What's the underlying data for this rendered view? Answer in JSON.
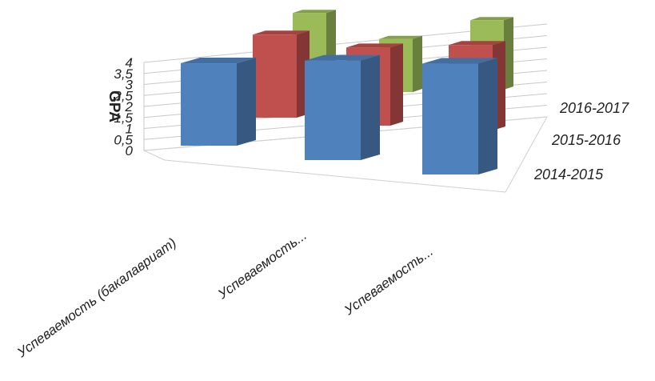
{
  "chart_data": {
    "type": "bar",
    "subtype": "3d-column",
    "categories": [
      "Успеваемость (бакалавриат)",
      "Успеваемость...",
      "Успеваемость..."
    ],
    "series": [
      {
        "name": "2014-2015",
        "values": [
          2.9,
          3.5,
          3.9
        ],
        "color": "#4f81bd"
      },
      {
        "name": "2015-2016",
        "values": [
          3.4,
          3.2,
          3.5
        ],
        "color": "#c0504d"
      },
      {
        "name": "2016-2017",
        "values": [
          3.6,
          2.6,
          3.4
        ],
        "color": "#9bbb59"
      }
    ],
    "ylabel": "GPA",
    "yticks": [
      "0",
      "0,5",
      "1",
      "1,5",
      "2",
      "2,5",
      "3",
      "3,5",
      "4"
    ],
    "ylim": [
      0,
      4
    ],
    "grid": true,
    "legend": "series labels on depth axis (right)"
  }
}
